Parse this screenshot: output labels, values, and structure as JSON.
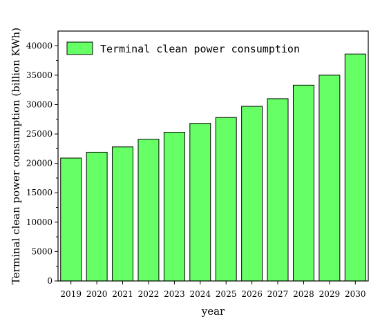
{
  "chart_data": {
    "type": "bar",
    "categories": [
      "2019",
      "2020",
      "2021",
      "2022",
      "2023",
      "2024",
      "2025",
      "2026",
      "2027",
      "2028",
      "2029",
      "2030"
    ],
    "category_labels": [
      "2019",
      "2020",
      "2021",
      "2022",
      "2023",
      "2024",
      "2025",
      "2026",
      "2027",
      "2028",
      "2029",
      "2030"
    ],
    "series": [
      {
        "name": "Terminal clean power consumption",
        "values": [
          20900,
          21900,
          22800,
          24100,
          25300,
          26800,
          27800,
          29700,
          31000,
          33300,
          35000,
          38600
        ],
        "color": "#66ff66"
      }
    ],
    "xlabel": "year",
    "ylabel": "Terminal clean power consumption (billion KWh)",
    "ylim": [
      0,
      42500
    ],
    "yticks": [
      0,
      5000,
      10000,
      15000,
      20000,
      25000,
      30000,
      35000,
      40000
    ],
    "legend": "top-left",
    "grid": false
  }
}
